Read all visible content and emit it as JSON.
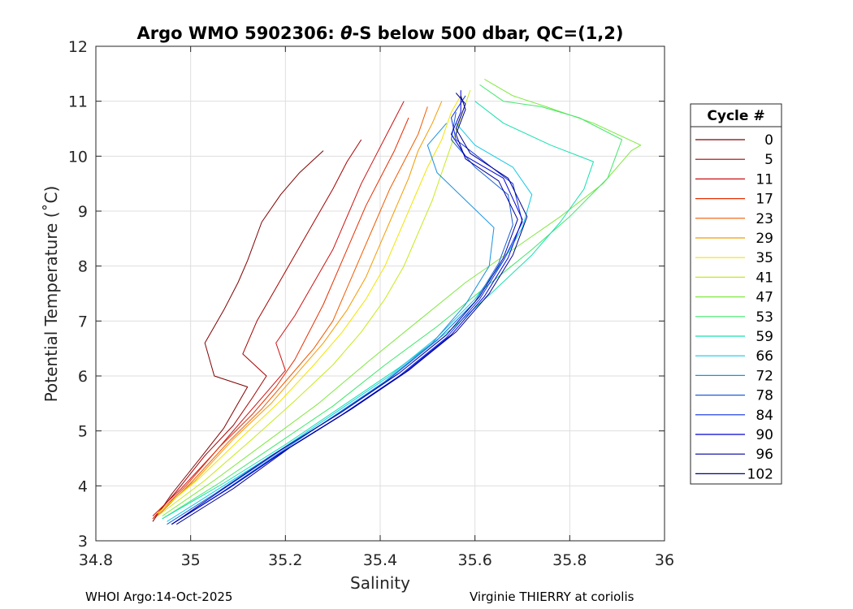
{
  "chart_data": {
    "type": "line",
    "title_prefix": "Argo WMO 5902306: ",
    "title_symbol": "θ",
    "title_suffix": "-S below 500 dbar,  QC=(1,2)",
    "xlabel": "Salinity",
    "ylabel": "Potential Temperature (˚C)",
    "xlim": [
      34.8,
      36
    ],
    "ylim": [
      3,
      12
    ],
    "xticks": [
      34.8,
      35,
      35.2,
      35.4,
      35.6,
      35.8,
      36
    ],
    "xtick_labels": [
      "34.8",
      "35",
      "35.2",
      "35.4",
      "35.6",
      "35.8",
      "36"
    ],
    "yticks": [
      3,
      4,
      5,
      6,
      7,
      8,
      9,
      10,
      11,
      12
    ],
    "ytick_labels": [
      "3",
      "4",
      "5",
      "6",
      "7",
      "8",
      "9",
      "10",
      "11",
      "12"
    ],
    "grid": true,
    "legend": {
      "title": "Cycle #",
      "location": "right-outside",
      "entries": [
        {
          "label": "0",
          "color": "#800000"
        },
        {
          "label": "5",
          "color": "#a50000"
        },
        {
          "label": "11",
          "color": "#cc1010"
        },
        {
          "label": "17",
          "color": "#e52e00"
        },
        {
          "label": "23",
          "color": "#ef5b00"
        },
        {
          "label": "29",
          "color": "#f59a00"
        },
        {
          "label": "35",
          "color": "#f2e400"
        },
        {
          "label": "41",
          "color": "#c6ea1a"
        },
        {
          "label": "47",
          "color": "#80e840"
        },
        {
          "label": "53",
          "color": "#3ee86a"
        },
        {
          "label": "59",
          "color": "#16e0b0"
        },
        {
          "label": "66",
          "color": "#14c8e6"
        },
        {
          "label": "72",
          "color": "#1892e0"
        },
        {
          "label": "78",
          "color": "#1660d8"
        },
        {
          "label": "84",
          "color": "#0c2ee0"
        },
        {
          "label": "90",
          "color": "#0000d2"
        },
        {
          "label": "96",
          "color": "#00009e"
        },
        {
          "label": "102",
          "color": "#000090"
        }
      ]
    },
    "series": [
      {
        "name": "0",
        "points": [
          [
            34.92,
            3.35
          ],
          [
            34.96,
            3.85
          ],
          [
            35.02,
            4.5
          ],
          [
            35.07,
            5.05
          ],
          [
            35.1,
            5.5
          ],
          [
            35.12,
            5.8
          ],
          [
            35.05,
            6.0
          ],
          [
            35.03,
            6.6
          ],
          [
            35.07,
            7.2
          ],
          [
            35.1,
            7.7
          ],
          [
            35.12,
            8.1
          ],
          [
            35.15,
            8.8
          ],
          [
            35.19,
            9.3
          ],
          [
            35.23,
            9.7
          ],
          [
            35.28,
            10.1
          ]
        ]
      },
      {
        "name": "5",
        "points": [
          [
            34.92,
            3.4
          ],
          [
            34.97,
            3.9
          ],
          [
            35.03,
            4.55
          ],
          [
            35.09,
            5.1
          ],
          [
            35.13,
            5.6
          ],
          [
            35.16,
            6.0
          ],
          [
            35.11,
            6.4
          ],
          [
            35.14,
            7.0
          ],
          [
            35.18,
            7.6
          ],
          [
            35.22,
            8.2
          ],
          [
            35.26,
            8.8
          ],
          [
            35.3,
            9.4
          ],
          [
            35.33,
            9.9
          ],
          [
            35.36,
            10.3
          ]
        ]
      },
      {
        "name": "11",
        "points": [
          [
            34.92,
            3.45
          ],
          [
            34.98,
            3.95
          ],
          [
            35.05,
            4.6
          ],
          [
            35.11,
            5.2
          ],
          [
            35.16,
            5.7
          ],
          [
            35.2,
            6.1
          ],
          [
            35.18,
            6.6
          ],
          [
            35.22,
            7.1
          ],
          [
            35.26,
            7.7
          ],
          [
            35.3,
            8.3
          ],
          [
            35.33,
            8.9
          ],
          [
            35.36,
            9.5
          ],
          [
            35.39,
            10.0
          ],
          [
            35.42,
            10.5
          ],
          [
            35.45,
            11.0
          ]
        ]
      },
      {
        "name": "17",
        "points": [
          [
            34.92,
            3.4
          ],
          [
            34.99,
            4.0
          ],
          [
            35.06,
            4.7
          ],
          [
            35.13,
            5.3
          ],
          [
            35.18,
            5.8
          ],
          [
            35.22,
            6.3
          ],
          [
            35.25,
            6.8
          ],
          [
            35.28,
            7.3
          ],
          [
            35.31,
            7.9
          ],
          [
            35.34,
            8.5
          ],
          [
            35.37,
            9.1
          ],
          [
            35.4,
            9.6
          ],
          [
            35.43,
            10.1
          ],
          [
            35.46,
            10.7
          ]
        ]
      },
      {
        "name": "23",
        "points": [
          [
            34.93,
            3.45
          ],
          [
            35.0,
            4.05
          ],
          [
            35.08,
            4.8
          ],
          [
            35.15,
            5.4
          ],
          [
            35.21,
            6.0
          ],
          [
            35.26,
            6.5
          ],
          [
            35.3,
            7.0
          ],
          [
            35.33,
            7.6
          ],
          [
            35.36,
            8.2
          ],
          [
            35.39,
            8.8
          ],
          [
            35.42,
            9.4
          ],
          [
            35.45,
            9.9
          ],
          [
            35.48,
            10.4
          ],
          [
            35.5,
            10.9
          ]
        ]
      },
      {
        "name": "29",
        "points": [
          [
            34.93,
            3.5
          ],
          [
            35.01,
            4.1
          ],
          [
            35.09,
            4.85
          ],
          [
            35.17,
            5.5
          ],
          [
            35.23,
            6.1
          ],
          [
            35.28,
            6.6
          ],
          [
            35.33,
            7.2
          ],
          [
            35.37,
            7.8
          ],
          [
            35.4,
            8.4
          ],
          [
            35.43,
            9.0
          ],
          [
            35.46,
            9.6
          ],
          [
            35.48,
            10.1
          ],
          [
            35.51,
            10.6
          ],
          [
            35.53,
            11.0
          ]
        ]
      },
      {
        "name": "35",
        "points": [
          [
            34.93,
            3.5
          ],
          [
            35.02,
            4.15
          ],
          [
            35.11,
            4.9
          ],
          [
            35.19,
            5.55
          ],
          [
            35.26,
            6.2
          ],
          [
            35.32,
            6.8
          ],
          [
            35.37,
            7.4
          ],
          [
            35.41,
            8.0
          ],
          [
            35.44,
            8.6
          ],
          [
            35.47,
            9.2
          ],
          [
            35.5,
            9.8
          ],
          [
            35.53,
            10.3
          ],
          [
            35.55,
            10.8
          ],
          [
            35.57,
            11.1
          ]
        ]
      },
      {
        "name": "41",
        "points": [
          [
            34.93,
            3.45
          ],
          [
            35.03,
            4.1
          ],
          [
            35.13,
            4.85
          ],
          [
            35.22,
            5.55
          ],
          [
            35.3,
            6.2
          ],
          [
            35.36,
            6.8
          ],
          [
            35.41,
            7.4
          ],
          [
            35.45,
            8.0
          ],
          [
            35.48,
            8.6
          ],
          [
            35.51,
            9.2
          ],
          [
            35.53,
            9.7
          ],
          [
            35.55,
            10.2
          ],
          [
            35.57,
            10.7
          ],
          [
            35.59,
            11.2
          ]
        ]
      },
      {
        "name": "47",
        "points": [
          [
            34.94,
            3.45
          ],
          [
            35.05,
            4.1
          ],
          [
            35.16,
            4.8
          ],
          [
            35.27,
            5.5
          ],
          [
            35.38,
            6.3
          ],
          [
            35.48,
            7.0
          ],
          [
            35.58,
            7.7
          ],
          [
            35.68,
            8.3
          ],
          [
            35.78,
            8.9
          ],
          [
            35.87,
            9.5
          ],
          [
            35.93,
            10.1
          ],
          [
            35.95,
            10.2
          ],
          [
            35.85,
            10.6
          ],
          [
            35.75,
            10.9
          ],
          [
            35.68,
            11.1
          ],
          [
            35.62,
            11.4
          ]
        ]
      },
      {
        "name": "53",
        "points": [
          [
            34.94,
            3.4
          ],
          [
            35.06,
            4.05
          ],
          [
            35.18,
            4.75
          ],
          [
            35.3,
            5.45
          ],
          [
            35.41,
            6.2
          ],
          [
            35.52,
            6.9
          ],
          [
            35.62,
            7.6
          ],
          [
            35.72,
            8.3
          ],
          [
            35.8,
            8.9
          ],
          [
            35.88,
            9.6
          ],
          [
            35.91,
            10.3
          ],
          [
            35.82,
            10.7
          ],
          [
            35.74,
            10.9
          ],
          [
            35.66,
            11.0
          ],
          [
            35.61,
            11.3
          ]
        ]
      },
      {
        "name": "59",
        "points": [
          [
            34.94,
            3.4
          ],
          [
            35.07,
            4.05
          ],
          [
            35.2,
            4.75
          ],
          [
            35.32,
            5.45
          ],
          [
            35.44,
            6.15
          ],
          [
            35.55,
            6.85
          ],
          [
            35.64,
            7.55
          ],
          [
            35.72,
            8.2
          ],
          [
            35.78,
            8.8
          ],
          [
            35.83,
            9.4
          ],
          [
            35.85,
            9.9
          ],
          [
            35.76,
            10.2
          ],
          [
            35.66,
            10.6
          ],
          [
            35.6,
            11.0
          ]
        ]
      },
      {
        "name": "66",
        "points": [
          [
            34.95,
            3.35
          ],
          [
            35.06,
            3.95
          ],
          [
            35.18,
            4.6
          ],
          [
            35.3,
            5.3
          ],
          [
            35.42,
            6.0
          ],
          [
            35.52,
            6.7
          ],
          [
            35.6,
            7.4
          ],
          [
            35.66,
            8.1
          ],
          [
            35.7,
            8.7
          ],
          [
            35.72,
            9.3
          ],
          [
            35.68,
            9.8
          ],
          [
            35.6,
            10.2
          ],
          [
            35.56,
            10.6
          ]
        ]
      },
      {
        "name": "72",
        "points": [
          [
            34.96,
            3.3
          ],
          [
            35.06,
            3.85
          ],
          [
            35.17,
            4.5
          ],
          [
            35.29,
            5.2
          ],
          [
            35.41,
            5.9
          ],
          [
            35.51,
            6.6
          ],
          [
            35.58,
            7.3
          ],
          [
            35.63,
            8.0
          ],
          [
            35.64,
            8.7
          ],
          [
            35.58,
            9.2
          ],
          [
            35.52,
            9.7
          ],
          [
            35.5,
            10.2
          ],
          [
            35.54,
            10.6
          ]
        ]
      },
      {
        "name": "78",
        "points": [
          [
            34.95,
            3.3
          ],
          [
            35.05,
            3.85
          ],
          [
            35.17,
            4.55
          ],
          [
            35.3,
            5.25
          ],
          [
            35.42,
            5.95
          ],
          [
            35.52,
            6.65
          ],
          [
            35.6,
            7.35
          ],
          [
            35.65,
            8.05
          ],
          [
            35.68,
            8.75
          ],
          [
            35.67,
            9.3
          ],
          [
            35.6,
            9.8
          ],
          [
            35.55,
            10.3
          ],
          [
            35.56,
            10.8
          ]
        ]
      },
      {
        "name": "84",
        "points": [
          [
            34.96,
            3.3
          ],
          [
            35.07,
            3.9
          ],
          [
            35.19,
            4.6
          ],
          [
            35.32,
            5.3
          ],
          [
            35.44,
            6.0
          ],
          [
            35.54,
            6.7
          ],
          [
            35.61,
            7.4
          ],
          [
            35.66,
            8.1
          ],
          [
            35.7,
            8.8
          ],
          [
            35.68,
            9.5
          ],
          [
            35.62,
            9.9
          ],
          [
            35.56,
            10.3
          ],
          [
            35.55,
            10.7
          ],
          [
            35.58,
            11.1
          ]
        ]
      },
      {
        "name": "90",
        "points": [
          [
            34.96,
            3.3
          ],
          [
            35.08,
            3.95
          ],
          [
            35.2,
            4.65
          ],
          [
            35.33,
            5.35
          ],
          [
            35.45,
            6.05
          ],
          [
            35.55,
            6.75
          ],
          [
            35.62,
            7.45
          ],
          [
            35.67,
            8.15
          ],
          [
            35.7,
            8.85
          ],
          [
            35.66,
            9.6
          ],
          [
            35.58,
            10.0
          ],
          [
            35.55,
            10.4
          ],
          [
            35.57,
            10.8
          ],
          [
            35.57,
            11.2
          ]
        ]
      },
      {
        "name": "96",
        "points": [
          [
            34.96,
            3.3
          ],
          [
            35.07,
            3.95
          ],
          [
            35.19,
            4.65
          ],
          [
            35.32,
            5.35
          ],
          [
            35.44,
            6.05
          ],
          [
            35.54,
            6.75
          ],
          [
            35.61,
            7.45
          ],
          [
            35.66,
            8.15
          ],
          [
            35.69,
            8.85
          ],
          [
            35.65,
            9.55
          ],
          [
            35.58,
            9.95
          ],
          [
            35.56,
            10.4
          ],
          [
            35.58,
            10.85
          ],
          [
            35.57,
            11.1
          ]
        ]
      },
      {
        "name": "102",
        "points": [
          [
            34.97,
            3.3
          ],
          [
            35.09,
            3.95
          ],
          [
            35.21,
            4.7
          ],
          [
            35.34,
            5.4
          ],
          [
            35.46,
            6.1
          ],
          [
            35.56,
            6.8
          ],
          [
            35.63,
            7.5
          ],
          [
            35.68,
            8.2
          ],
          [
            35.71,
            8.9
          ],
          [
            35.67,
            9.6
          ],
          [
            35.59,
            10.05
          ],
          [
            35.56,
            10.5
          ],
          [
            35.58,
            10.95
          ],
          [
            35.56,
            11.15
          ]
        ]
      }
    ]
  },
  "footer": {
    "left": "WHOI Argo:14-Oct-2025",
    "right": "Virginie THIERRY at coriolis"
  }
}
